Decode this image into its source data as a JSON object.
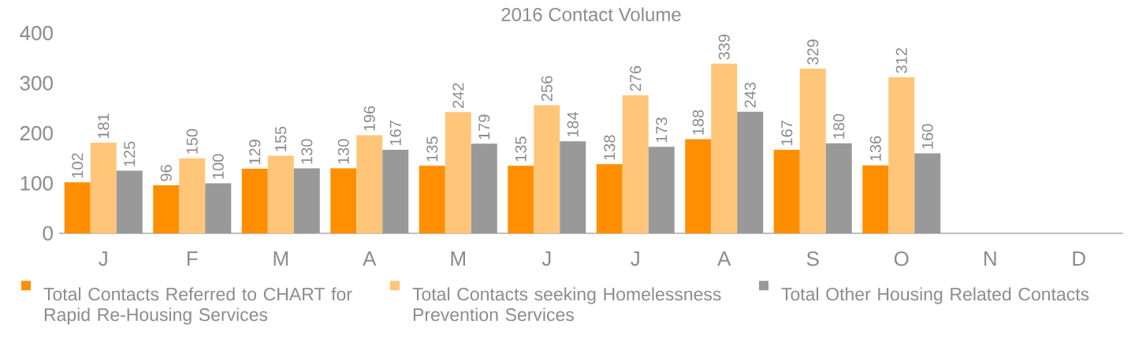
{
  "chart_data": {
    "type": "bar",
    "title": "2016 Contact Volume",
    "categories": [
      "J",
      "F",
      "M",
      "A",
      "M",
      "J",
      "J",
      "A",
      "S",
      "O",
      "N",
      "D"
    ],
    "series": [
      {
        "name": "Total Contacts Referred to CHART for Rapid Re-Housing Services",
        "color": "#ff8f00",
        "values": [
          102,
          96,
          129,
          130,
          135,
          135,
          138,
          188,
          167,
          136,
          null,
          null
        ]
      },
      {
        "name": "Total Contacts seeking Homelessness Prevention Services",
        "color": "#ffc67a",
        "values": [
          181,
          150,
          155,
          196,
          242,
          256,
          276,
          339,
          329,
          312,
          null,
          null
        ]
      },
      {
        "name": "Total Other Housing Related Contacts",
        "color": "#999999",
        "values": [
          125,
          100,
          130,
          167,
          179,
          184,
          173,
          243,
          180,
          160,
          null,
          null
        ]
      }
    ],
    "ylim": [
      0,
      400
    ],
    "yticks": [
      0,
      100,
      200,
      300,
      400
    ],
    "grid": false,
    "legend": "bottom",
    "data_labels": true
  }
}
